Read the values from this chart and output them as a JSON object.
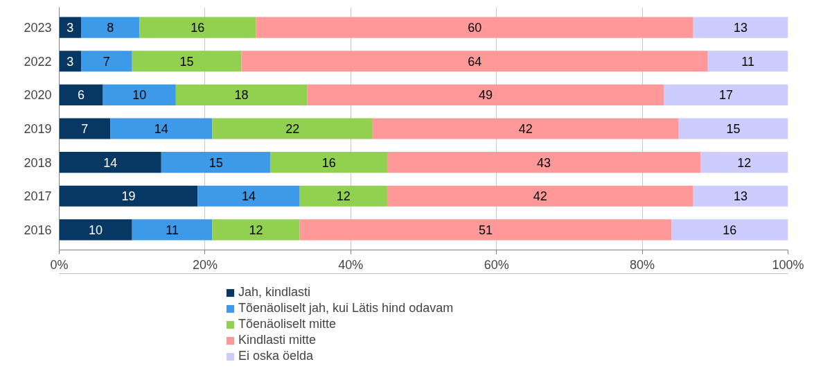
{
  "chart_data": {
    "type": "bar",
    "orientation": "horizontal",
    "stacked": true,
    "categories": [
      "2023",
      "2022",
      "2020",
      "2019",
      "2018",
      "2017",
      "2016"
    ],
    "series": [
      {
        "name": "Jah, kindlasti",
        "color": "#073763",
        "values": [
          3,
          3,
          6,
          7,
          14,
          19,
          10
        ]
      },
      {
        "name": "Tõenäoliselt jah, kui Lätis hind odavam",
        "color": "#3d9ae8",
        "values": [
          8,
          7,
          10,
          14,
          15,
          14,
          11
        ]
      },
      {
        "name": "Tõenäoliselt mitte",
        "color": "#92d050",
        "values": [
          16,
          15,
          18,
          22,
          16,
          12,
          12
        ]
      },
      {
        "name": "Kindlasti mitte",
        "color": "#ff9999",
        "values": [
          60,
          64,
          49,
          42,
          43,
          42,
          51
        ]
      },
      {
        "name": "Ei oska öelda",
        "color": "#ccccff",
        "values": [
          13,
          11,
          17,
          15,
          12,
          13,
          16
        ]
      }
    ],
    "xlim": [
      0,
      100
    ],
    "xticks": [
      {
        "value": 0,
        "label": "0%"
      },
      {
        "value": 20,
        "label": "20%"
      },
      {
        "value": 40,
        "label": "40%"
      },
      {
        "value": 60,
        "label": "60%"
      },
      {
        "value": 80,
        "label": "80%"
      },
      {
        "value": 100,
        "label": "100%"
      }
    ],
    "grid": "x",
    "legend": "bottom",
    "data_labels": true
  }
}
